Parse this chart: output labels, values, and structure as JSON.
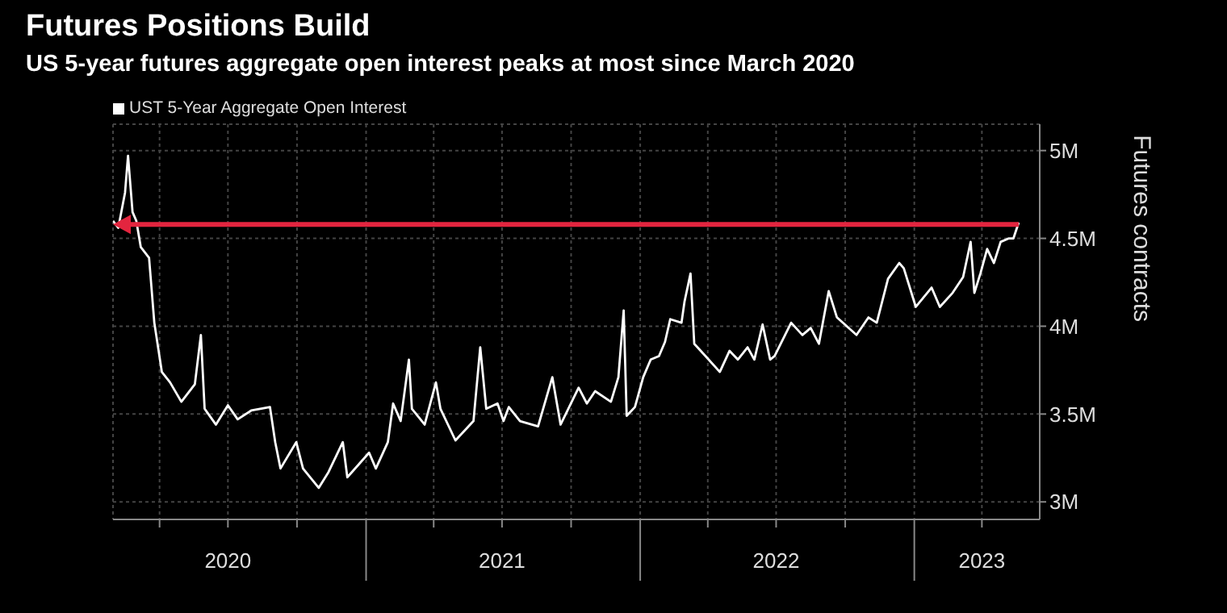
{
  "chart_data": {
    "type": "line",
    "title": "Futures Positions Build",
    "subtitle": "US 5-year futures aggregate open interest peaks at most since March 2020",
    "ylabel": "Futures contracts",
    "x": [
      "2020-01-30",
      "2020-02-06",
      "2020-02-15",
      "2020-02-19",
      "2020-02-25",
      "2020-03-01",
      "2020-03-07",
      "2020-03-18",
      "2020-03-25",
      "2020-04-04",
      "2020-04-15",
      "2020-04-30",
      "2020-05-18",
      "2020-05-26",
      "2020-05-31",
      "2020-06-15",
      "2020-07-01",
      "2020-07-14",
      "2020-08-01",
      "2020-08-26",
      "2020-09-02",
      "2020-09-09",
      "2020-09-30",
      "2020-10-09",
      "2020-10-30",
      "2020-11-12",
      "2020-12-01",
      "2020-12-07",
      "2021-01-05",
      "2021-01-14",
      "2021-01-30",
      "2021-02-06",
      "2021-02-16",
      "2021-02-27",
      "2021-03-03",
      "2021-03-20",
      "2021-04-04",
      "2021-04-10",
      "2021-04-30",
      "2021-05-24",
      "2021-06-02",
      "2021-06-10",
      "2021-06-25",
      "2021-07-03",
      "2021-07-10",
      "2021-07-25",
      "2021-08-18",
      "2021-09-06",
      "2021-09-17",
      "2021-10-11",
      "2021-10-22",
      "2021-11-02",
      "2021-11-23",
      "2021-12-03",
      "2021-12-10",
      "2021-12-14",
      "2021-12-25",
      "2022-01-05",
      "2022-01-15",
      "2022-01-26",
      "2022-02-03",
      "2022-02-10",
      "2022-02-25",
      "2022-03-01",
      "2022-03-09",
      "2022-03-14",
      "2022-03-29",
      "2022-04-17",
      "2022-04-30",
      "2022-05-11",
      "2022-05-24",
      "2022-06-02",
      "2022-06-13",
      "2022-06-23",
      "2022-06-29",
      "2022-07-21",
      "2022-08-05",
      "2022-08-16",
      "2022-08-27",
      "2022-09-09",
      "2022-09-20",
      "2022-10-16",
      "2022-11-01",
      "2022-11-12",
      "2022-11-27",
      "2022-12-12",
      "2022-12-18",
      "2023-01-03",
      "2023-01-24",
      "2023-02-04",
      "2023-02-21",
      "2023-03-07",
      "2023-03-17",
      "2023-03-22",
      "2023-03-30",
      "2023-04-08",
      "2023-04-17",
      "2023-04-26",
      "2023-05-07",
      "2023-05-13",
      "2023-05-20"
    ],
    "series": [
      {
        "name": "UST 5-Year Aggregate Open Interest",
        "color": "#ffffff",
        "values": [
          4.6,
          4.56,
          4.76,
          4.97,
          4.65,
          4.6,
          4.45,
          4.39,
          4.02,
          3.74,
          3.68,
          3.57,
          3.67,
          3.95,
          3.53,
          3.44,
          3.55,
          3.47,
          3.52,
          3.54,
          3.34,
          3.19,
          3.34,
          3.19,
          3.08,
          3.17,
          3.34,
          3.14,
          3.28,
          3.19,
          3.34,
          3.56,
          3.46,
          3.81,
          3.53,
          3.44,
          3.68,
          3.53,
          3.35,
          3.46,
          3.88,
          3.53,
          3.56,
          3.46,
          3.54,
          3.46,
          3.43,
          3.71,
          3.44,
          3.65,
          3.56,
          3.63,
          3.57,
          3.71,
          4.09,
          3.49,
          3.54,
          3.71,
          3.81,
          3.83,
          3.91,
          4.04,
          4.02,
          4.14,
          4.3,
          3.9,
          3.83,
          3.74,
          3.86,
          3.81,
          3.88,
          3.81,
          4.01,
          3.81,
          3.83,
          4.02,
          3.95,
          3.99,
          3.9,
          4.2,
          4.05,
          3.95,
          4.05,
          4.02,
          4.27,
          4.36,
          4.33,
          4.11,
          4.22,
          4.11,
          4.19,
          4.28,
          4.48,
          4.19,
          4.3,
          4.44,
          4.36,
          4.48,
          4.5,
          4.5,
          4.59
        ]
      }
    ],
    "xlim": [
      "2020-01-30",
      "2023-06-17"
    ],
    "xticks": [
      {
        "value": "2020-04-01",
        "label": null
      },
      {
        "value": "2020-07-01",
        "label": "2020"
      },
      {
        "value": "2020-10-01",
        "label": null
      },
      {
        "value": "2021-01-01",
        "label": null
      },
      {
        "value": "2021-04-01",
        "label": null
      },
      {
        "value": "2021-07-01",
        "label": "2021"
      },
      {
        "value": "2021-10-01",
        "label": null
      },
      {
        "value": "2022-01-01",
        "label": null
      },
      {
        "value": "2022-04-01",
        "label": null
      },
      {
        "value": "2022-07-01",
        "label": "2022"
      },
      {
        "value": "2022-10-01",
        "label": null
      },
      {
        "value": "2023-01-01",
        "label": null
      },
      {
        "value": "2023-04-01",
        "label": "2023"
      }
    ],
    "ylim": [
      2.9,
      5.15
    ],
    "yticks": [
      {
        "value": 3,
        "label": "3M"
      },
      {
        "value": 3.5,
        "label": "3.5M"
      },
      {
        "value": 4,
        "label": "4M"
      },
      {
        "value": 4.5,
        "label": "4.5M"
      },
      {
        "value": 5,
        "label": "5M"
      }
    ],
    "ref_lines": [
      {
        "axis": "y",
        "value": 4.58,
        "color": "#e3253f"
      }
    ],
    "grid": true,
    "legend": "top left",
    "marker": "none",
    "line_style": "solid"
  }
}
